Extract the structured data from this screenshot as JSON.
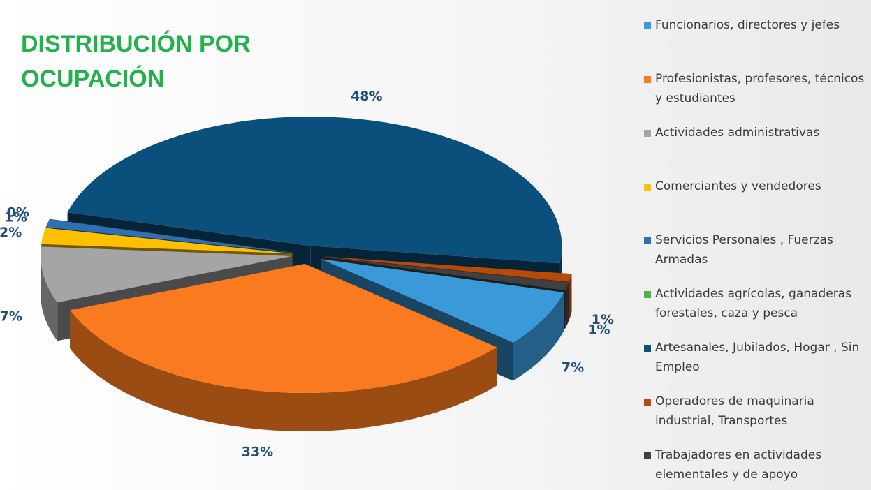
{
  "chart_data": {
    "type": "pie",
    "title": "DISTRIBUCIÓN POR OCUPACIÓN",
    "categories": [
      "Funcionarios, directores y jefes",
      "Profesionistas, profesores, técnicos y estudiantes",
      "Actividades administrativas",
      "Comerciantes y vendedores",
      "Servicios Personales , Fuerzas Armadas",
      "Actividades agrícolas, ganaderas forestales, caza y pesca",
      "Artesanales, Jubilados, Hogar , Sin Empleo",
      "Operadores de maquinaria industrial, Transportes",
      "Trabajadores en actividades elementales y de apoyo"
    ],
    "values": [
      7,
      33,
      7,
      2,
      1,
      0,
      48,
      1,
      1
    ],
    "value_labels": [
      "7%",
      "33%",
      "7%",
      "2%",
      "1%",
      "0%",
      "48%",
      "1%",
      "1%"
    ],
    "colors": [
      "#3a9ad9",
      "#f97a1f",
      "#a5a5a5",
      "#ffc000",
      "#2e6fb5",
      "#4caf50",
      "#0b4f7c",
      "#b54a0a",
      "#404040"
    ],
    "legend": "right"
  }
}
